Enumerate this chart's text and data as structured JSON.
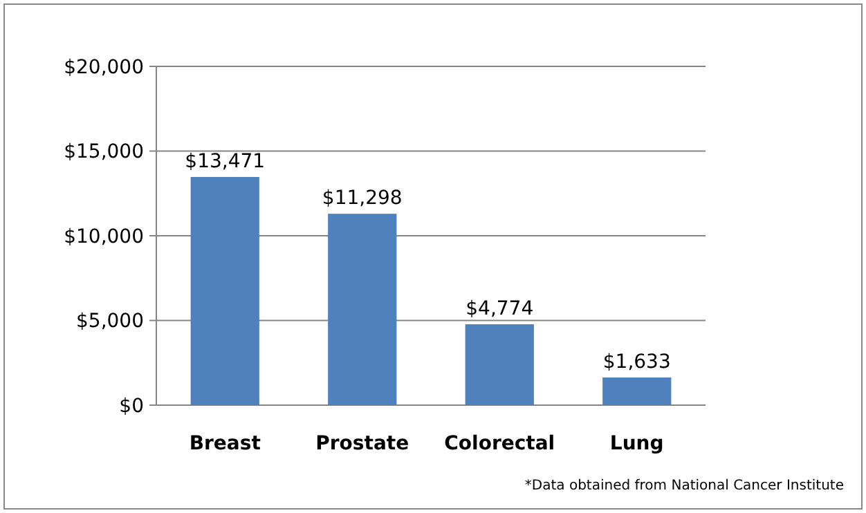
{
  "chart_data": {
    "type": "bar",
    "categories": [
      "Breast",
      "Prostate",
      "Colorectal",
      "Lung"
    ],
    "values": [
      13471,
      11298,
      4774,
      1633
    ],
    "value_labels": [
      "$13,471",
      "$11,298",
      "$4,774",
      "$1,633"
    ],
    "color": "#4f81bd",
    "ylim": [
      0,
      20000
    ],
    "yticks": [
      {
        "value": 0,
        "label": "$0"
      },
      {
        "value": 5000,
        "label": "$5,000"
      },
      {
        "value": 10000,
        "label": "$10,000"
      },
      {
        "value": 15000,
        "label": "$15,000"
      },
      {
        "value": 20000,
        "label": "$20,000"
      }
    ],
    "grid": "y",
    "annotations": [
      "*Data obtained from National Cancer Institute"
    ]
  }
}
